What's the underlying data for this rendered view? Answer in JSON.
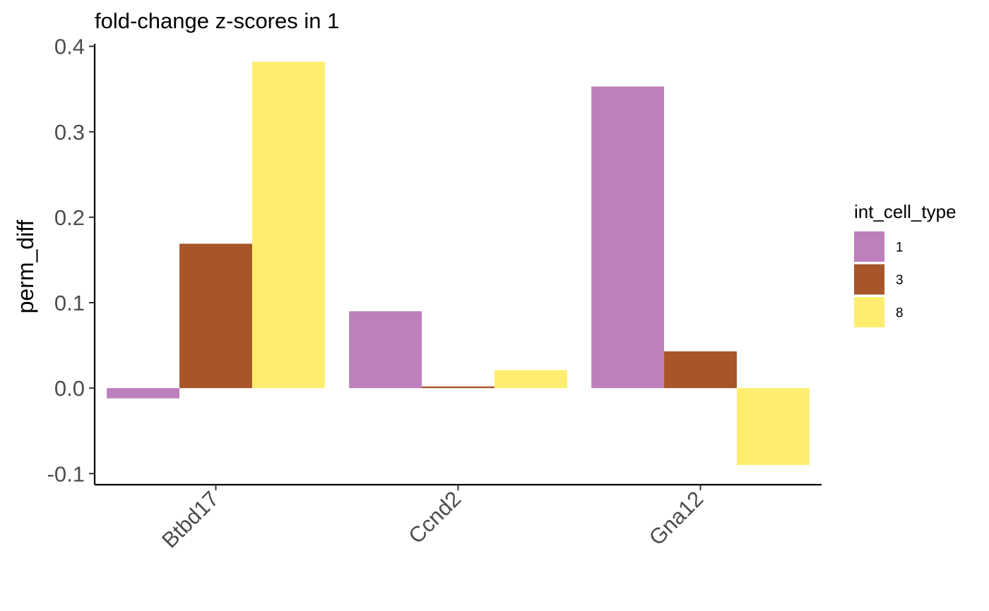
{
  "chart_data": {
    "type": "bar",
    "title": "fold-change z-scores in 1",
    "xlabel": "",
    "ylabel": "perm_diff",
    "categories": [
      "Btbd17",
      "Ccnd2",
      "Gna12"
    ],
    "series": [
      {
        "name": "1",
        "color": "#BC80BD",
        "values": [
          -0.012,
          0.09,
          0.353
        ]
      },
      {
        "name": "3",
        "color": "#A65628",
        "values": [
          0.169,
          0.002,
          0.043
        ]
      },
      {
        "name": "8",
        "color": "#FFED6F",
        "values": [
          0.382,
          0.021,
          -0.09
        ]
      }
    ],
    "ylim": [
      -0.113,
      0.403
    ],
    "yticks": [
      "-0.1",
      "0.0",
      "0.1",
      "0.2",
      "0.3",
      "0.4"
    ],
    "ytick_values": [
      -0.1,
      0.0,
      0.1,
      0.2,
      0.3,
      0.4
    ],
    "grid": false,
    "legend": {
      "title": "int_cell_type",
      "position": "right"
    }
  }
}
